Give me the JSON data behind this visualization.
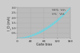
{
  "title": "",
  "xlabel": "Gate bias",
  "ylabel": "I_D (mA)",
  "xlim": [
    0,
    160
  ],
  "ylim": [
    0,
    3.0
  ],
  "xticks": [
    0,
    40,
    80,
    120,
    160
  ],
  "yticks": [
    0.5,
    1.0,
    1.5,
    2.0,
    2.5,
    3.0
  ],
  "curve_color": "#55ddee",
  "background_color": "#cccccc",
  "plot_bg_color": "#bbbbbb",
  "grid_color": "#aaaaaa",
  "label_upper": "90%  Vth",
  "label_lower": "0%   Vth",
  "label_fontsize": 3.2,
  "axis_fontsize": 3.5,
  "tick_fontsize": 3.2,
  "power_upper": 1.7,
  "power_lower": 2.0,
  "y_scale": 3.0
}
